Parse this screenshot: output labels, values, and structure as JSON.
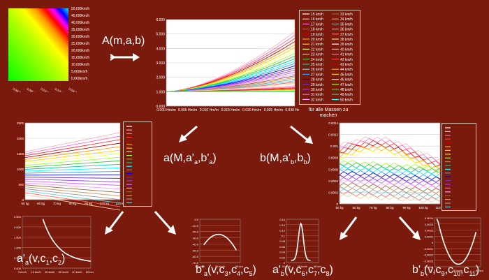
{
  "formulas": {
    "A": "A(m,a,b)",
    "a_M": "a(M,a'a,b'a)",
    "b_M": "b(M,a'b,bb)",
    "a_prime_a": "a'a(v,c1,c2)",
    "b_prime_a": "b'a(v,c3,c4,c5)",
    "a_prime_b": "a'b(v,c6,c7,c8)",
    "b_prime_b": "b'b(v,c9,c10,c11)"
  },
  "note": "für alle Massen zu machen",
  "colors": {
    "background": "#7a1a0c",
    "heatmap_top": "#00ff00",
    "heatmap_right": "#ffff00"
  },
  "chart_data": [
    {
      "id": "heatmap",
      "type": "heatmap",
      "legend_labels": [
        "50,000km/h",
        "45,000km/h",
        "40,000km/h",
        "35,000km/h",
        "30,000km/h",
        "25,000km/h",
        "20,000km/h",
        "15,000km/h",
        "10,000km/h",
        "5,000km/h",
        "0,000km/h"
      ]
    },
    {
      "id": "main",
      "type": "line",
      "ylim": [
        0,
        6
      ],
      "yticks": [
        "6.000",
        "5.000",
        "4.000",
        "3.000",
        "2.000",
        "1.000",
        "0.000"
      ],
      "xticks": [
        "0.000 Hm/m",
        "0.005 Hm/m",
        "0.010 Hm/m",
        "0.015 Hm/m",
        "0.020 Hm/m",
        "0.025 Hm/m",
        "0.030 Hm/m"
      ],
      "legend": [
        "15 km/h",
        "16 km/h",
        "17 km/h",
        "18 km/h",
        "19 km/h",
        "20 km/h",
        "21 km/h",
        "22 km/h",
        "23 km/h",
        "24 km/h",
        "25 km/h",
        "26 km/h",
        "27 km/h",
        "28 km/h",
        "29 km/h",
        "30 km/h",
        "31 km/h",
        "32 km/h",
        "33 km/h",
        "34 km/h",
        "35 km/h",
        "36 km/h",
        "37 km/h",
        "38 km/h",
        "39 km/h",
        "40 km/h",
        "41 km/h",
        "42 km/h",
        "43 km/h",
        "44 km/h",
        "45 km/h",
        "46 km/h",
        "47 km/h",
        "48 km/h",
        "49 km/h",
        "50 km/h"
      ]
    },
    {
      "id": "a_of_M",
      "type": "line",
      "yticks": [
        "2500",
        "2000",
        "1500",
        "1000",
        "500",
        "0"
      ],
      "xticks": [
        "50 kg",
        "60 kg",
        "70 kg",
        "80 kg",
        "90 kg",
        "100 kg",
        "110 kg"
      ]
    },
    {
      "id": "b_of_M",
      "type": "line",
      "yticks": [
        "0.0014",
        "0.0012",
        "0.001",
        "0.0008",
        "0.0006",
        "0.0004",
        "0.0002",
        "0"
      ],
      "xticks": [
        "50 kg",
        "60 kg",
        "70 kg",
        "80 kg",
        "90 kg",
        "100 kg",
        "110 kg"
      ]
    },
    {
      "id": "a_prime_a",
      "type": "line",
      "yticks": [
        "2.500",
        "2.000",
        "1.500",
        "1.000",
        "0.500",
        "0.000"
      ],
      "xticks": [
        "0 km/h",
        "10 km/h",
        "20 km/h",
        "30 km/h",
        "40 km/h",
        "50 km/h"
      ]
    },
    {
      "id": "b_prime_a",
      "type": "line",
      "yticks": [
        "0.0",
        "-10.0",
        "-20.0",
        "-30.0",
        "-40.0",
        "-50.0",
        "-60.0",
        "-70.0"
      ],
      "xticks": [
        "20 km/h",
        "30 km/h",
        "40 km/h"
      ]
    },
    {
      "id": "a_prime_b",
      "type": "line",
      "yticks": [
        "0.16",
        "0.14",
        "0.12",
        "0.1",
        "0.08",
        "0.06",
        "0.04",
        "0.02",
        "0"
      ],
      "xticks": [
        "0 km/h",
        "20 km/h",
        "40 km/h"
      ]
    },
    {
      "id": "b_prime_b",
      "type": "line",
      "yticks": [
        "0.0004",
        "0.0003",
        "0.0002",
        "0.0001",
        "0",
        "-0.0001",
        "-0.0002",
        "-0.0003",
        "-0.0004"
      ],
      "xticks": [
        "0",
        "20 km/h",
        "40 km/h"
      ]
    }
  ]
}
